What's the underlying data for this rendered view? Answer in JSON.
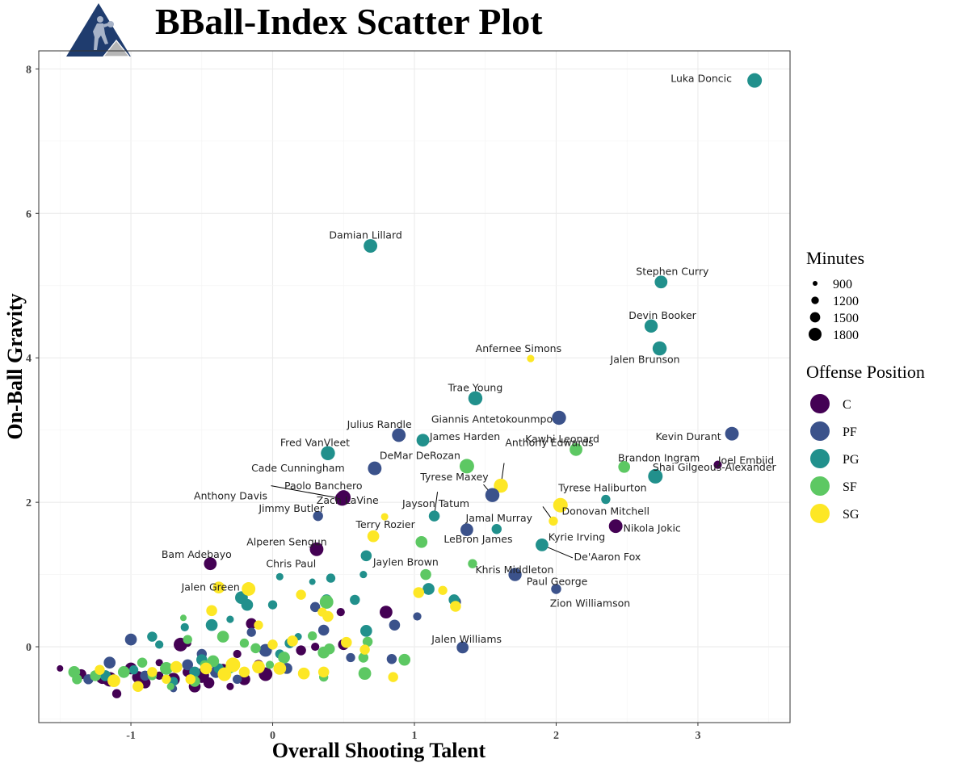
{
  "title": "BBall-Index Scatter Plot",
  "logo_icon": "basketball-player-logo",
  "chart_data": {
    "type": "scatter",
    "title": "BBall-Index Scatter Plot",
    "xlabel": "Overall Shooting Talent",
    "ylabel": "On-Ball Gravity",
    "xlim": [
      -1.65,
      3.65
    ],
    "ylim": [
      -1.05,
      8.25
    ],
    "x_ticks": [
      -1,
      0,
      1,
      2,
      3
    ],
    "y_ticks": [
      0,
      2,
      4,
      6,
      8
    ],
    "grid": true,
    "legend_placement": "right",
    "size_legend": {
      "title": "Minutes",
      "values": [
        900,
        1200,
        1500,
        1800
      ]
    },
    "color_legend": {
      "title": "Offense Position",
      "items": [
        {
          "name": "C",
          "color": "#440154"
        },
        {
          "name": "PF",
          "color": "#3B528B"
        },
        {
          "name": "PG",
          "color": "#21908C"
        },
        {
          "name": "SF",
          "color": "#5DC863"
        },
        {
          "name": "SG",
          "color": "#FDE725"
        }
      ]
    },
    "labeled_points": [
      {
        "name": "Luka Doncic",
        "x": 3.4,
        "y": 7.84,
        "pos": "PG",
        "min": 1800
      },
      {
        "name": "Damian Lillard",
        "x": 0.69,
        "y": 5.55,
        "pos": "PG",
        "min": 1700
      },
      {
        "name": "Stephen Curry",
        "x": 2.74,
        "y": 5.05,
        "pos": "PG",
        "min": 1600
      },
      {
        "name": "Devin Booker",
        "x": 2.67,
        "y": 4.44,
        "pos": "PG",
        "min": 1650
      },
      {
        "name": "Jalen Brunson",
        "x": 2.73,
        "y": 4.13,
        "pos": "PG",
        "min": 1750
      },
      {
        "name": "Anfernee Simons",
        "x": 1.82,
        "y": 3.99,
        "pos": "SG",
        "min": 1000
      },
      {
        "name": "Trae Young",
        "x": 1.43,
        "y": 3.44,
        "pos": "PG",
        "min": 1750
      },
      {
        "name": "Giannis Antetokounmpo",
        "x": 2.02,
        "y": 3.17,
        "pos": "PF",
        "min": 1750
      },
      {
        "name": "Kevin Durant",
        "x": 3.24,
        "y": 2.95,
        "pos": "PF",
        "min": 1700
      },
      {
        "name": "Julius Randle",
        "x": 0.89,
        "y": 2.93,
        "pos": "PF",
        "min": 1700
      },
      {
        "name": "James Harden",
        "x": 1.06,
        "y": 2.86,
        "pos": "PG",
        "min": 1600
      },
      {
        "name": "Kawhi Leonard",
        "x": 2.14,
        "y": 2.73,
        "pos": "SF",
        "min": 1600
      },
      {
        "name": "Fred VanVleet",
        "x": 0.39,
        "y": 2.68,
        "pos": "PG",
        "min": 1750
      },
      {
        "name": "Joel Embiid",
        "x": 3.14,
        "y": 2.52,
        "pos": "C",
        "min": 1100
      },
      {
        "name": "DeMar DeRozan",
        "x": 1.37,
        "y": 2.5,
        "pos": "SF",
        "min": 1800
      },
      {
        "name": "Brandon Ingram",
        "x": 2.48,
        "y": 2.49,
        "pos": "SF",
        "min": 1500
      },
      {
        "name": "Cade Cunningham",
        "x": 0.72,
        "y": 2.47,
        "pos": "PF",
        "min": 1700
      },
      {
        "name": "Shai Gilgeous-Alexander",
        "x": 2.7,
        "y": 2.36,
        "pos": "PG",
        "min": 1800
      },
      {
        "name": "Anthony Edwards",
        "x": 1.61,
        "y": 2.23,
        "pos": "SG",
        "min": 1750
      },
      {
        "name": "Tyrese Maxey",
        "x": 1.55,
        "y": 2.1,
        "pos": "PF",
        "min": 1750
      },
      {
        "name": "Paolo Banchero",
        "x": 0.5,
        "y": 2.07,
        "pos": "C",
        "min": 1750
      },
      {
        "name": "Zach LaVine",
        "x": 0.5,
        "y": 2.06,
        "pos": "C",
        "min": 1750
      },
      {
        "name": "Anthony Davis",
        "x": 0.49,
        "y": 2.05,
        "pos": "C",
        "min": 1750
      },
      {
        "name": "Tyrese Haliburton",
        "x": 2.35,
        "y": 2.04,
        "pos": "PG",
        "min": 1200
      },
      {
        "name": "Donovan Mitchell",
        "x": 2.03,
        "y": 1.96,
        "pos": "SG",
        "min": 1800
      },
      {
        "name": "Jayson Tatum",
        "x": 1.14,
        "y": 1.81,
        "pos": "PG",
        "min": 1400
      },
      {
        "name": "Jimmy Butler",
        "x": 0.32,
        "y": 1.81,
        "pos": "PF",
        "min": 1300
      },
      {
        "name": "Kyrie Irving",
        "x": 1.98,
        "y": 1.74,
        "pos": "SG",
        "min": 1200
      },
      {
        "name": "Nikola Jokic",
        "x": 2.42,
        "y": 1.67,
        "pos": "C",
        "min": 1700
      },
      {
        "name": "Jamal Murray",
        "x": 1.58,
        "y": 1.63,
        "pos": "PG",
        "min": 1300
      },
      {
        "name": "LeBron James",
        "x": 1.37,
        "y": 1.62,
        "pos": "PF",
        "min": 1600
      },
      {
        "name": "Terry Rozier",
        "x": 0.71,
        "y": 1.53,
        "pos": "SG",
        "min": 1500
      },
      {
        "name": "De'Aaron Fox",
        "x": 1.9,
        "y": 1.41,
        "pos": "PG",
        "min": 1600
      },
      {
        "name": "Alperen Sengun",
        "x": 0.31,
        "y": 1.35,
        "pos": "C",
        "min": 1700
      },
      {
        "name": "Jaylen Brown",
        "x": 0.66,
        "y": 1.26,
        "pos": "PG",
        "min": 1400
      },
      {
        "name": "Khris Middleton",
        "x": 1.41,
        "y": 1.15,
        "pos": "SF",
        "min": 1200
      },
      {
        "name": "Bam Adebayo",
        "x": -0.44,
        "y": 1.15,
        "pos": "C",
        "min": 1600
      },
      {
        "name": "Paul George",
        "x": 1.71,
        "y": 1.0,
        "pos": "PF",
        "min": 1650
      },
      {
        "name": "Chris Paul",
        "x": 0.05,
        "y": 0.97,
        "pos": "PG",
        "min": 1000
      },
      {
        "name": "Zion Williamson",
        "x": 2.0,
        "y": 0.8,
        "pos": "PF",
        "min": 1300
      },
      {
        "name": "Jalen Green",
        "x": -0.17,
        "y": 0.8,
        "pos": "SG",
        "min": 1700
      },
      {
        "name": "Jalen Williams",
        "x": 1.34,
        "y": -0.01,
        "pos": "PF",
        "min": 1500
      }
    ],
    "background_points": [
      [
        -1.5,
        -0.3,
        "C",
        900
      ],
      [
        -1.35,
        -0.38,
        "C",
        1300
      ],
      [
        -1.2,
        -0.42,
        "C",
        1700
      ],
      [
        -1.1,
        -0.65,
        "C",
        1200
      ],
      [
        -1.0,
        -0.3,
        "C",
        1500
      ],
      [
        -0.9,
        -0.5,
        "C",
        1400
      ],
      [
        -0.8,
        -0.4,
        "C",
        1100
      ],
      [
        -0.7,
        -0.45,
        "C",
        1600
      ],
      [
        -0.65,
        0.03,
        "C",
        1700
      ],
      [
        -0.6,
        -0.35,
        "C",
        1300
      ],
      [
        -0.55,
        -0.55,
        "C",
        1500
      ],
      [
        -0.5,
        -0.4,
        "C",
        1800
      ],
      [
        -0.45,
        -0.5,
        "C",
        1400
      ],
      [
        -0.35,
        -0.3,
        "C",
        1200
      ],
      [
        -0.3,
        -0.55,
        "C",
        1000
      ],
      [
        -0.2,
        -0.45,
        "C",
        1500
      ],
      [
        -0.15,
        0.32,
        "C",
        1400
      ],
      [
        -0.1,
        -0.25,
        "C",
        1300
      ],
      [
        -0.05,
        -0.38,
        "C",
        1700
      ],
      [
        0.05,
        -0.3,
        "C",
        1200
      ],
      [
        0.2,
        -0.05,
        "C",
        1300
      ],
      [
        0.3,
        0.0,
        "C",
        1100
      ],
      [
        0.5,
        0.03,
        "C",
        1400
      ],
      [
        0.48,
        0.48,
        "C",
        1100
      ],
      [
        0.8,
        0.48,
        "C",
        1600
      ],
      [
        -0.8,
        -0.22,
        "C",
        1000
      ],
      [
        -0.6,
        0.05,
        "C",
        1000
      ],
      [
        -0.95,
        -0.42,
        "C",
        1500
      ],
      [
        -1.15,
        -0.45,
        "C",
        1800
      ],
      [
        -0.25,
        -0.1,
        "C",
        1100
      ],
      [
        -1.0,
        0.1,
        "PF",
        1500
      ],
      [
        -1.3,
        -0.45,
        "PF",
        1300
      ],
      [
        -1.15,
        -0.22,
        "PF",
        1500
      ],
      [
        -0.9,
        -0.4,
        "PF",
        1300
      ],
      [
        -0.7,
        -0.58,
        "PF",
        1000
      ],
      [
        -0.6,
        -0.25,
        "PF",
        1400
      ],
      [
        -0.5,
        -0.1,
        "PF",
        1300
      ],
      [
        -0.4,
        -0.35,
        "PF",
        1500
      ],
      [
        -0.3,
        -0.25,
        "PF",
        1100
      ],
      [
        -0.25,
        -0.45,
        "PF",
        1200
      ],
      [
        -0.15,
        0.2,
        "PF",
        1200
      ],
      [
        -0.05,
        -0.05,
        "PF",
        1600
      ],
      [
        0.1,
        -0.3,
        "PF",
        1400
      ],
      [
        0.3,
        0.55,
        "PF",
        1300
      ],
      [
        0.36,
        0.23,
        "PF",
        1400
      ],
      [
        0.55,
        -0.15,
        "PF",
        1200
      ],
      [
        0.84,
        -0.17,
        "PF",
        1300
      ],
      [
        0.86,
        0.3,
        "PF",
        1400
      ],
      [
        1.02,
        0.42,
        "PF",
        1100
      ],
      [
        1.29,
        0.62,
        "PF",
        1400
      ],
      [
        -1.18,
        -0.4,
        "PG",
        1400
      ],
      [
        -0.98,
        -0.32,
        "PG",
        1200
      ],
      [
        -0.85,
        0.14,
        "PG",
        1300
      ],
      [
        -0.8,
        0.03,
        "PG",
        1100
      ],
      [
        -0.62,
        0.27,
        "PG",
        1100
      ],
      [
        -0.55,
        -0.35,
        "PG",
        1400
      ],
      [
        -0.5,
        -0.18,
        "PG",
        1400
      ],
      [
        -0.43,
        0.3,
        "PG",
        1500
      ],
      [
        -0.38,
        -0.3,
        "PG",
        1300
      ],
      [
        -0.22,
        0.68,
        "PG",
        1600
      ],
      [
        -0.18,
        0.58,
        "PG",
        1500
      ],
      [
        0.0,
        0.58,
        "PG",
        1200
      ],
      [
        0.12,
        0.05,
        "PG",
        1300
      ],
      [
        0.18,
        0.14,
        "PG",
        1000
      ],
      [
        0.38,
        0.65,
        "PG",
        1400
      ],
      [
        0.41,
        0.95,
        "PG",
        1200
      ],
      [
        0.58,
        0.65,
        "PG",
        1300
      ],
      [
        0.64,
        1.0,
        "PG",
        1000
      ],
      [
        0.66,
        0.22,
        "PG",
        1500
      ],
      [
        1.1,
        0.8,
        "PG",
        1500
      ],
      [
        1.28,
        0.65,
        "PG",
        1400
      ],
      [
        0.28,
        0.9,
        "PG",
        900
      ],
      [
        -0.3,
        0.38,
        "PG",
        1000
      ],
      [
        0.05,
        -0.1,
        "PG",
        1200
      ],
      [
        -0.7,
        -0.48,
        "PG",
        1200
      ],
      [
        -1.4,
        -0.35,
        "SF",
        1500
      ],
      [
        -1.38,
        -0.45,
        "SF",
        1300
      ],
      [
        -1.25,
        -0.4,
        "SF",
        1400
      ],
      [
        -1.05,
        -0.35,
        "SF",
        1500
      ],
      [
        -0.92,
        -0.22,
        "SF",
        1300
      ],
      [
        -0.85,
        -0.4,
        "SF",
        1200
      ],
      [
        -0.75,
        -0.3,
        "SF",
        1600
      ],
      [
        -0.72,
        -0.55,
        "SF",
        1000
      ],
      [
        -0.63,
        0.4,
        "SF",
        900
      ],
      [
        -0.55,
        -0.48,
        "SF",
        1400
      ],
      [
        -0.48,
        -0.25,
        "SF",
        1200
      ],
      [
        -0.42,
        -0.2,
        "SF",
        1500
      ],
      [
        -0.35,
        0.14,
        "SF",
        1500
      ],
      [
        -0.3,
        -0.3,
        "SF",
        1300
      ],
      [
        -0.12,
        -0.02,
        "SF",
        1300
      ],
      [
        -0.02,
        -0.25,
        "SF",
        1100
      ],
      [
        0.08,
        -0.15,
        "SF",
        1500
      ],
      [
        0.28,
        0.15,
        "SF",
        1200
      ],
      [
        0.36,
        -0.08,
        "SF",
        1500
      ],
      [
        0.38,
        0.62,
        "SF",
        1700
      ],
      [
        0.4,
        -0.03,
        "SF",
        1400
      ],
      [
        0.64,
        -0.15,
        "SF",
        1300
      ],
      [
        0.65,
        -0.37,
        "SF",
        1600
      ],
      [
        0.67,
        0.07,
        "SF",
        1300
      ],
      [
        0.93,
        -0.18,
        "SF",
        1500
      ],
      [
        1.05,
        1.45,
        "SF",
        1500
      ],
      [
        1.08,
        1.0,
        "SF",
        1400
      ],
      [
        0.36,
        -0.42,
        "SF",
        1200
      ],
      [
        -0.6,
        0.1,
        "SF",
        1200
      ],
      [
        -0.2,
        0.05,
        "SF",
        1200
      ],
      [
        -1.22,
        -0.32,
        "SG",
        1300
      ],
      [
        -1.12,
        -0.47,
        "SG",
        1600
      ],
      [
        -0.95,
        -0.55,
        "SG",
        1400
      ],
      [
        -0.85,
        -0.35,
        "SG",
        1300
      ],
      [
        -0.75,
        -0.45,
        "SG",
        1200
      ],
      [
        -0.68,
        -0.28,
        "SG",
        1500
      ],
      [
        -0.58,
        -0.45,
        "SG",
        1300
      ],
      [
        -0.47,
        -0.3,
        "SG",
        1500
      ],
      [
        -0.43,
        0.5,
        "SG",
        1400
      ],
      [
        -0.34,
        -0.38,
        "SG",
        1700
      ],
      [
        -0.28,
        -0.25,
        "SG",
        1800
      ],
      [
        -0.2,
        -0.35,
        "SG",
        1400
      ],
      [
        -0.1,
        -0.28,
        "SG",
        1600
      ],
      [
        0.0,
        0.03,
        "SG",
        1300
      ],
      [
        0.05,
        -0.3,
        "SG",
        1600
      ],
      [
        0.14,
        0.08,
        "SG",
        1400
      ],
      [
        0.2,
        0.72,
        "SG",
        1300
      ],
      [
        0.22,
        -0.37,
        "SG",
        1500
      ],
      [
        0.35,
        0.48,
        "SG",
        1200
      ],
      [
        0.36,
        -0.35,
        "SG",
        1400
      ],
      [
        0.39,
        0.42,
        "SG",
        1400
      ],
      [
        0.52,
        0.06,
        "SG",
        1400
      ],
      [
        0.65,
        -0.04,
        "SG",
        1300
      ],
      [
        0.79,
        1.8,
        "SG",
        1000
      ],
      [
        0.85,
        -0.42,
        "SG",
        1300
      ],
      [
        1.03,
        0.75,
        "SG",
        1400
      ],
      [
        1.2,
        0.78,
        "SG",
        1200
      ],
      [
        1.29,
        0.56,
        "SG",
        1400
      ],
      [
        -0.38,
        0.82,
        "SG",
        1500
      ],
      [
        -0.1,
        0.3,
        "SG",
        1200
      ]
    ],
    "leader_lines": [
      "Anthony Davis",
      "Anthony Edwards",
      "Jayson Tatum",
      "Kyrie Irving",
      "De'Aaron Fox",
      "Tyrese Maxey"
    ]
  }
}
